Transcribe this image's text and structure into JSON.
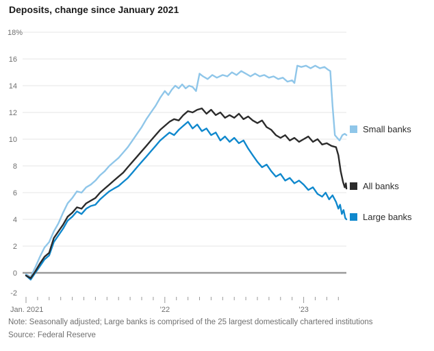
{
  "note": "Note: Seasonally adjusted; Large banks is comprised of the 25 largest domestically chartered institutions",
  "source": "Source: Federal Reserve",
  "colors": {
    "gridline": "#e4e4e4",
    "zero_line": "#9a9a9a",
    "tick": "#9a9a9a",
    "axis_text": "#6f6f6f",
    "title_text": "#1a1a1a",
    "note_text": "#6f6f6f",
    "legend_text": "#2b2b2b"
  },
  "chart_data": {
    "type": "line",
    "title": "Deposits, change since January 2021",
    "x_unit": "months since January 2021",
    "x_axis": {
      "months_total": 28,
      "major_tick_months": [
        0,
        12,
        24
      ],
      "labels": [
        {
          "text": "Jan. 2021",
          "month": 0,
          "align": "left"
        },
        {
          "text": "’22",
          "month": 12,
          "align": "center"
        },
        {
          "text": "’23",
          "month": 24,
          "align": "center"
        }
      ]
    },
    "y_axis": {
      "min": -2,
      "max": 18,
      "step": 2,
      "top_label": "18%",
      "unit": "%"
    },
    "legend_position": "right",
    "series": [
      {
        "id": "small-banks",
        "name": "Small banks",
        "color": "#8fc6e9",
        "z": 0,
        "points": [
          [
            0,
            -0.1
          ],
          [
            0.4,
            -0.3
          ],
          [
            0.8,
            0.4
          ],
          [
            1.2,
            1.2
          ],
          [
            1.6,
            1.9
          ],
          [
            2,
            2.3
          ],
          [
            2.4,
            3.1
          ],
          [
            2.8,
            3.7
          ],
          [
            3.2,
            4.5
          ],
          [
            3.6,
            5.2
          ],
          [
            4,
            5.6
          ],
          [
            4.4,
            6.1
          ],
          [
            4.8,
            6.0
          ],
          [
            5.2,
            6.4
          ],
          [
            5.6,
            6.6
          ],
          [
            6,
            6.9
          ],
          [
            6.4,
            7.3
          ],
          [
            6.8,
            7.6
          ],
          [
            7.2,
            8.0
          ],
          [
            7.6,
            8.3
          ],
          [
            8,
            8.6
          ],
          [
            8.4,
            9.0
          ],
          [
            8.8,
            9.4
          ],
          [
            9.2,
            9.9
          ],
          [
            9.6,
            10.4
          ],
          [
            10,
            10.9
          ],
          [
            10.4,
            11.5
          ],
          [
            10.8,
            12.0
          ],
          [
            11.2,
            12.5
          ],
          [
            11.6,
            13.1
          ],
          [
            12,
            13.6
          ],
          [
            12.3,
            13.3
          ],
          [
            12.6,
            13.7
          ],
          [
            12.9,
            14.0
          ],
          [
            13.2,
            13.8
          ],
          [
            13.5,
            14.1
          ],
          [
            13.8,
            13.8
          ],
          [
            14.1,
            14.0
          ],
          [
            14.4,
            13.9
          ],
          [
            14.7,
            13.6
          ],
          [
            15.0,
            14.9
          ],
          [
            15.3,
            14.7
          ],
          [
            15.7,
            14.5
          ],
          [
            16.1,
            14.8
          ],
          [
            16.5,
            14.6
          ],
          [
            17.0,
            14.8
          ],
          [
            17.4,
            14.7
          ],
          [
            17.8,
            15.0
          ],
          [
            18.2,
            14.8
          ],
          [
            18.6,
            15.1
          ],
          [
            19.0,
            14.9
          ],
          [
            19.4,
            14.7
          ],
          [
            19.8,
            14.9
          ],
          [
            20.2,
            14.7
          ],
          [
            20.6,
            14.8
          ],
          [
            21.0,
            14.6
          ],
          [
            21.4,
            14.7
          ],
          [
            21.8,
            14.5
          ],
          [
            22.2,
            14.6
          ],
          [
            22.6,
            14.3
          ],
          [
            23.0,
            14.4
          ],
          [
            23.2,
            14.2
          ],
          [
            23.45,
            15.5
          ],
          [
            23.8,
            15.4
          ],
          [
            24.2,
            15.5
          ],
          [
            24.6,
            15.3
          ],
          [
            25.0,
            15.5
          ],
          [
            25.4,
            15.3
          ],
          [
            25.8,
            15.4
          ],
          [
            26.1,
            15.2
          ],
          [
            26.3,
            15.1
          ],
          [
            26.5,
            12.5
          ],
          [
            26.7,
            10.3
          ],
          [
            26.9,
            10.1
          ],
          [
            27.1,
            9.9
          ],
          [
            27.35,
            10.3
          ],
          [
            27.55,
            10.4
          ],
          [
            27.7,
            10.3
          ]
        ]
      },
      {
        "id": "all-banks",
        "name": "All banks",
        "color": "#2b2b2b",
        "z": 2,
        "points": [
          [
            0,
            -0.2
          ],
          [
            0.4,
            -0.4
          ],
          [
            0.8,
            0.1
          ],
          [
            1.2,
            0.7
          ],
          [
            1.6,
            1.2
          ],
          [
            2,
            1.5
          ],
          [
            2.4,
            2.6
          ],
          [
            2.8,
            3.1
          ],
          [
            3.2,
            3.6
          ],
          [
            3.6,
            4.2
          ],
          [
            4,
            4.5
          ],
          [
            4.4,
            4.9
          ],
          [
            4.8,
            4.8
          ],
          [
            5.2,
            5.2
          ],
          [
            5.6,
            5.4
          ],
          [
            6,
            5.6
          ],
          [
            6.4,
            6.0
          ],
          [
            6.8,
            6.3
          ],
          [
            7.2,
            6.6
          ],
          [
            7.6,
            6.9
          ],
          [
            8,
            7.2
          ],
          [
            8.4,
            7.5
          ],
          [
            8.8,
            7.9
          ],
          [
            9.2,
            8.3
          ],
          [
            9.6,
            8.7
          ],
          [
            10,
            9.1
          ],
          [
            10.4,
            9.5
          ],
          [
            10.8,
            9.9
          ],
          [
            11.2,
            10.3
          ],
          [
            11.6,
            10.7
          ],
          [
            12,
            11.0
          ],
          [
            12.4,
            11.3
          ],
          [
            12.8,
            11.5
          ],
          [
            13.2,
            11.4
          ],
          [
            13.6,
            11.8
          ],
          [
            14,
            12.1
          ],
          [
            14.4,
            12.0
          ],
          [
            14.8,
            12.2
          ],
          [
            15.2,
            12.3
          ],
          [
            15.6,
            11.9
          ],
          [
            16,
            12.2
          ],
          [
            16.4,
            11.8
          ],
          [
            16.8,
            12.0
          ],
          [
            17.2,
            11.6
          ],
          [
            17.6,
            11.8
          ],
          [
            18,
            11.6
          ],
          [
            18.4,
            11.9
          ],
          [
            18.8,
            11.5
          ],
          [
            19.2,
            11.7
          ],
          [
            19.6,
            11.4
          ],
          [
            20,
            11.2
          ],
          [
            20.4,
            11.4
          ],
          [
            20.8,
            10.9
          ],
          [
            21.2,
            10.7
          ],
          [
            21.6,
            10.3
          ],
          [
            22,
            10.1
          ],
          [
            22.4,
            10.3
          ],
          [
            22.8,
            9.9
          ],
          [
            23.2,
            10.1
          ],
          [
            23.6,
            9.8
          ],
          [
            24,
            10.0
          ],
          [
            24.4,
            10.2
          ],
          [
            24.8,
            9.8
          ],
          [
            25.2,
            10.0
          ],
          [
            25.6,
            9.6
          ],
          [
            26,
            9.7
          ],
          [
            26.4,
            9.5
          ],
          [
            26.8,
            9.4
          ],
          [
            27.0,
            8.8
          ],
          [
            27.2,
            7.6
          ],
          [
            27.4,
            6.8
          ],
          [
            27.55,
            6.4
          ],
          [
            27.65,
            6.7
          ],
          [
            27.7,
            6.3
          ]
        ]
      },
      {
        "id": "large-banks",
        "name": "Large banks",
        "color": "#0f88cd",
        "z": 1,
        "points": [
          [
            0,
            -0.2
          ],
          [
            0.4,
            -0.5
          ],
          [
            0.8,
            0.0
          ],
          [
            1.2,
            0.5
          ],
          [
            1.6,
            1.0
          ],
          [
            2,
            1.3
          ],
          [
            2.4,
            2.3
          ],
          [
            2.8,
            2.8
          ],
          [
            3.2,
            3.3
          ],
          [
            3.6,
            3.9
          ],
          [
            4,
            4.2
          ],
          [
            4.4,
            4.6
          ],
          [
            4.8,
            4.4
          ],
          [
            5.2,
            4.8
          ],
          [
            5.6,
            5.0
          ],
          [
            6,
            5.1
          ],
          [
            6.4,
            5.5
          ],
          [
            6.8,
            5.8
          ],
          [
            7.2,
            6.1
          ],
          [
            7.6,
            6.3
          ],
          [
            8,
            6.5
          ],
          [
            8.4,
            6.8
          ],
          [
            8.8,
            7.1
          ],
          [
            9.2,
            7.5
          ],
          [
            9.6,
            7.9
          ],
          [
            10,
            8.3
          ],
          [
            10.4,
            8.7
          ],
          [
            10.8,
            9.1
          ],
          [
            11.2,
            9.5
          ],
          [
            11.6,
            9.9
          ],
          [
            12,
            10.2
          ],
          [
            12.4,
            10.5
          ],
          [
            12.8,
            10.3
          ],
          [
            13.2,
            10.7
          ],
          [
            13.6,
            11.0
          ],
          [
            14,
            11.3
          ],
          [
            14.4,
            10.8
          ],
          [
            14.8,
            11.1
          ],
          [
            15.2,
            10.6
          ],
          [
            15.6,
            10.8
          ],
          [
            16,
            10.3
          ],
          [
            16.4,
            10.5
          ],
          [
            16.8,
            9.9
          ],
          [
            17.2,
            10.2
          ],
          [
            17.6,
            9.8
          ],
          [
            18,
            10.1
          ],
          [
            18.4,
            9.7
          ],
          [
            18.8,
            9.9
          ],
          [
            19.2,
            9.3
          ],
          [
            19.6,
            8.8
          ],
          [
            20,
            8.3
          ],
          [
            20.4,
            7.9
          ],
          [
            20.8,
            8.1
          ],
          [
            21.2,
            7.6
          ],
          [
            21.6,
            7.2
          ],
          [
            22,
            7.4
          ],
          [
            22.4,
            6.9
          ],
          [
            22.8,
            7.1
          ],
          [
            23.2,
            6.7
          ],
          [
            23.6,
            6.9
          ],
          [
            24,
            6.6
          ],
          [
            24.4,
            6.2
          ],
          [
            24.8,
            6.4
          ],
          [
            25.2,
            5.9
          ],
          [
            25.6,
            5.7
          ],
          [
            25.9,
            6.0
          ],
          [
            26.2,
            5.5
          ],
          [
            26.5,
            5.8
          ],
          [
            26.8,
            5.3
          ],
          [
            27.0,
            4.8
          ],
          [
            27.15,
            5.1
          ],
          [
            27.3,
            4.4
          ],
          [
            27.45,
            4.7
          ],
          [
            27.6,
            4.1
          ],
          [
            27.7,
            4.0
          ]
        ]
      }
    ]
  }
}
